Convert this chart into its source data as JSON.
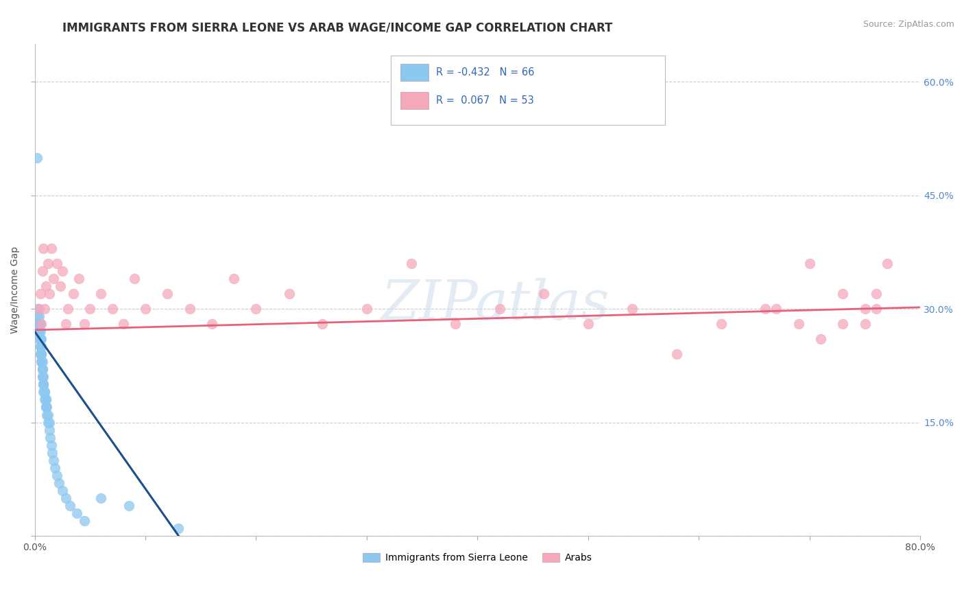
{
  "title": "IMMIGRANTS FROM SIERRA LEONE VS ARAB WAGE/INCOME GAP CORRELATION CHART",
  "source": "Source: ZipAtlas.com",
  "ylabel": "Wage/Income Gap",
  "xlim": [
    0.0,
    0.8
  ],
  "ylim": [
    0.0,
    0.65
  ],
  "x_ticks": [
    0.0,
    0.1,
    0.2,
    0.3,
    0.4,
    0.5,
    0.6,
    0.7,
    0.8
  ],
  "x_tick_labels_show": [
    "0.0%",
    "",
    "",
    "",
    "",
    "",
    "",
    "",
    "80.0%"
  ],
  "y_ticks": [
    0.0,
    0.15,
    0.3,
    0.45,
    0.6
  ],
  "y_tick_labels_right": [
    "",
    "15.0%",
    "30.0%",
    "45.0%",
    "60.0%"
  ],
  "legend_label1": "Immigrants from Sierra Leone",
  "legend_label2": "Arabs",
  "R1": -0.432,
  "N1": 66,
  "R2": 0.067,
  "N2": 53,
  "blue_color": "#8DC8F0",
  "pink_color": "#F5A8BB",
  "blue_line_color": "#1B4F8A",
  "pink_line_color": "#E8607A",
  "watermark": "ZIPatlas",
  "sl_x": [
    0.002,
    0.002,
    0.003,
    0.003,
    0.003,
    0.003,
    0.003,
    0.004,
    0.004,
    0.004,
    0.004,
    0.004,
    0.004,
    0.005,
    0.005,
    0.005,
    0.005,
    0.005,
    0.005,
    0.005,
    0.005,
    0.006,
    0.006,
    0.006,
    0.006,
    0.006,
    0.006,
    0.007,
    0.007,
    0.007,
    0.007,
    0.007,
    0.007,
    0.008,
    0.008,
    0.008,
    0.008,
    0.008,
    0.009,
    0.009,
    0.009,
    0.01,
    0.01,
    0.01,
    0.01,
    0.011,
    0.011,
    0.012,
    0.012,
    0.013,
    0.013,
    0.014,
    0.015,
    0.016,
    0.017,
    0.018,
    0.02,
    0.022,
    0.025,
    0.028,
    0.032,
    0.038,
    0.045,
    0.06,
    0.085,
    0.13
  ],
  "sl_y": [
    0.5,
    0.27,
    0.28,
    0.29,
    0.3,
    0.27,
    0.28,
    0.27,
    0.28,
    0.29,
    0.26,
    0.27,
    0.28,
    0.24,
    0.25,
    0.26,
    0.27,
    0.28,
    0.25,
    0.26,
    0.24,
    0.23,
    0.24,
    0.25,
    0.26,
    0.24,
    0.23,
    0.22,
    0.23,
    0.22,
    0.21,
    0.22,
    0.21,
    0.2,
    0.21,
    0.2,
    0.19,
    0.2,
    0.19,
    0.18,
    0.19,
    0.18,
    0.17,
    0.18,
    0.17,
    0.16,
    0.17,
    0.15,
    0.16,
    0.14,
    0.15,
    0.13,
    0.12,
    0.11,
    0.1,
    0.09,
    0.08,
    0.07,
    0.06,
    0.05,
    0.04,
    0.03,
    0.02,
    0.05,
    0.04,
    0.01
  ],
  "ar_x": [
    0.004,
    0.005,
    0.006,
    0.007,
    0.008,
    0.009,
    0.01,
    0.012,
    0.013,
    0.015,
    0.017,
    0.02,
    0.023,
    0.025,
    0.028,
    0.03,
    0.035,
    0.04,
    0.045,
    0.05,
    0.06,
    0.07,
    0.08,
    0.09,
    0.1,
    0.12,
    0.14,
    0.16,
    0.18,
    0.2,
    0.23,
    0.26,
    0.3,
    0.34,
    0.38,
    0.42,
    0.46,
    0.5,
    0.54,
    0.58,
    0.62,
    0.66,
    0.7,
    0.73,
    0.75,
    0.76,
    0.77,
    0.76,
    0.75,
    0.73,
    0.71,
    0.69,
    0.67
  ],
  "ar_y": [
    0.3,
    0.32,
    0.28,
    0.35,
    0.38,
    0.3,
    0.33,
    0.36,
    0.32,
    0.38,
    0.34,
    0.36,
    0.33,
    0.35,
    0.28,
    0.3,
    0.32,
    0.34,
    0.28,
    0.3,
    0.32,
    0.3,
    0.28,
    0.34,
    0.3,
    0.32,
    0.3,
    0.28,
    0.34,
    0.3,
    0.32,
    0.28,
    0.3,
    0.36,
    0.28,
    0.3,
    0.32,
    0.28,
    0.3,
    0.24,
    0.28,
    0.3,
    0.36,
    0.28,
    0.3,
    0.32,
    0.36,
    0.3,
    0.28,
    0.32,
    0.26,
    0.28,
    0.3
  ],
  "sl_line_x": [
    0.0,
    0.13
  ],
  "sl_line_y": [
    0.27,
    0.0
  ],
  "ar_line_x": [
    0.0,
    0.8
  ],
  "ar_line_y": [
    0.272,
    0.302
  ]
}
